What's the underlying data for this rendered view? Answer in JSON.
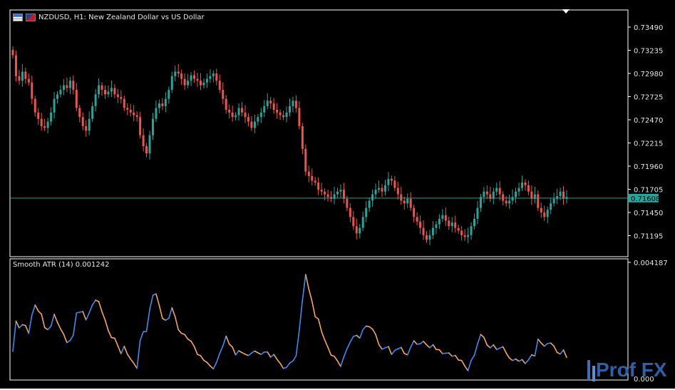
{
  "window": {
    "title": "NZDUSD, H1:  New Zealand Dollar vs US Dollar",
    "symbol_icon": "table-icon",
    "flag_icon": "nzd-usd-flag-icon"
  },
  "price_axis": {
    "labels": [
      "0.73490",
      "0.73235",
      "0.72980",
      "0.72725",
      "0.72470",
      "0.72215",
      "0.71960",
      "0.71705",
      "0.71450",
      "0.71195"
    ],
    "current_price": "0.71608"
  },
  "indicator": {
    "label": "Smooth ATR (14) 0.001242",
    "axis_top_label": "0.004187",
    "axis_bottom_label": "0.000"
  },
  "watermark": {
    "text": "Prof FX"
  },
  "colors": {
    "background": "#000000",
    "frame": "#ffffff",
    "bull": "#26a69a",
    "bear": "#ef5350",
    "price_line": "#26a69a",
    "atr_up": "#3d8bf0",
    "atr_down": "#f5a55a",
    "axis_text": "#e6e6e6"
  },
  "chart_data": {
    "type": "candlestick",
    "symbol": "NZDUSD",
    "timeframe": "H1",
    "ylim": [
      0.7105,
      0.7362
    ],
    "close_series": [
      0.7318,
      0.7295,
      0.729,
      0.73,
      0.7292,
      0.7288,
      0.727,
      0.7255,
      0.7248,
      0.724,
      0.7238,
      0.7245,
      0.7255,
      0.727,
      0.7275,
      0.728,
      0.7285,
      0.7282,
      0.729,
      0.728,
      0.726,
      0.725,
      0.724,
      0.7235,
      0.7248,
      0.7262,
      0.7275,
      0.7285,
      0.728,
      0.7275,
      0.7278,
      0.7282,
      0.7275,
      0.7272,
      0.727,
      0.726,
      0.7258,
      0.7255,
      0.7252,
      0.725,
      0.723,
      0.7218,
      0.721,
      0.723,
      0.7248,
      0.726,
      0.7265,
      0.7262,
      0.727,
      0.728,
      0.7295,
      0.73,
      0.7298,
      0.7292,
      0.7285,
      0.729,
      0.7296,
      0.7292,
      0.729,
      0.7285,
      0.7288,
      0.7292,
      0.7295,
      0.7298,
      0.729,
      0.728,
      0.727,
      0.7258,
      0.7255,
      0.725,
      0.7252,
      0.726,
      0.7255,
      0.725,
      0.7245,
      0.7238,
      0.7245,
      0.725,
      0.7255,
      0.7262,
      0.7268,
      0.7265,
      0.7258,
      0.7255,
      0.7252,
      0.725,
      0.7255,
      0.7262,
      0.7268,
      0.726,
      0.724,
      0.7215,
      0.719,
      0.7185,
      0.718,
      0.7178,
      0.717,
      0.7168,
      0.7165,
      0.7162,
      0.716,
      0.7165,
      0.7168,
      0.717,
      0.716,
      0.715,
      0.714,
      0.713,
      0.7122,
      0.7128,
      0.714,
      0.715,
      0.7158,
      0.7165,
      0.717,
      0.7172,
      0.7168,
      0.7175,
      0.7182,
      0.718,
      0.7172,
      0.7165,
      0.7158,
      0.7155,
      0.716,
      0.715,
      0.714,
      0.7135,
      0.7128,
      0.712,
      0.7115,
      0.712,
      0.7128,
      0.7132,
      0.7138,
      0.7142,
      0.7136,
      0.713,
      0.7134,
      0.7128,
      0.7125,
      0.712,
      0.7118,
      0.712,
      0.713,
      0.7138,
      0.715,
      0.7162,
      0.7168,
      0.7165,
      0.716,
      0.7168,
      0.7172,
      0.7165,
      0.7158,
      0.7155,
      0.7158,
      0.7162,
      0.7168,
      0.7172,
      0.7178,
      0.7175,
      0.7168,
      0.716,
      0.7165,
      0.715,
      0.7145,
      0.714,
      0.7148,
      0.7155,
      0.716,
      0.7163,
      0.7168,
      0.716,
      0.7162
    ]
  }
}
